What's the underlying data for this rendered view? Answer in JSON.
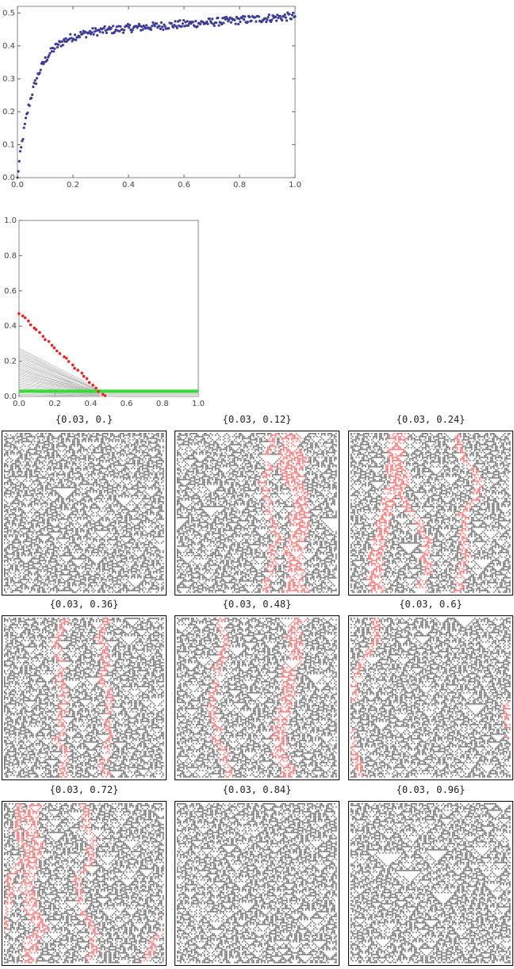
{
  "chart_data": [
    {
      "type": "scatter",
      "color": "#3d3d99",
      "xlim": [
        0,
        1.0
      ],
      "ylim": [
        0,
        0.52
      ],
      "xticks": [
        "0.0",
        "0.2",
        "0.4",
        "0.6",
        "0.8",
        "1.0"
      ],
      "yticks": [
        "0.0",
        "0.1",
        "0.2",
        "0.3",
        "0.4",
        "0.5"
      ],
      "curve": {
        "asymptote": 0.49,
        "rate": 17,
        "plateau_slope": 0.06,
        "start": 0.0
      },
      "n_points": 300
    },
    {
      "type": "line",
      "xlim": [
        0,
        1.0
      ],
      "ylim": [
        0,
        1.0
      ],
      "xticks": [
        "0.0",
        "0.2",
        "0.4",
        "0.6",
        "0.8",
        "1.0"
      ],
      "yticks": [
        "0.0",
        "0.2",
        "0.4",
        "0.6",
        "0.8",
        "1.0"
      ],
      "highlight_y": 0.03,
      "highlight_color": "#33dd33",
      "line_color": "#bbbbbb",
      "marker_color": "#ee2222",
      "endpoint": 0.5
    },
    {
      "type": "grid",
      "panels": [
        {
          "label": "{0.03, 0.}",
          "red": 0
        },
        {
          "label": "{0.03, 0.12}",
          "red": 3
        },
        {
          "label": "{0.03, 0.24}",
          "red": 3
        },
        {
          "label": "{0.03, 0.36}",
          "red": 2
        },
        {
          "label": "{0.03, 0.48}",
          "red": 2
        },
        {
          "label": "{0.03, 0.6}",
          "red": 1
        },
        {
          "label": "{0.03, 0.72}",
          "red": 3
        },
        {
          "label": "{0.03, 0.84}",
          "red": 0
        },
        {
          "label": "{0.03, 0.96}",
          "red": 0
        }
      ]
    }
  ]
}
